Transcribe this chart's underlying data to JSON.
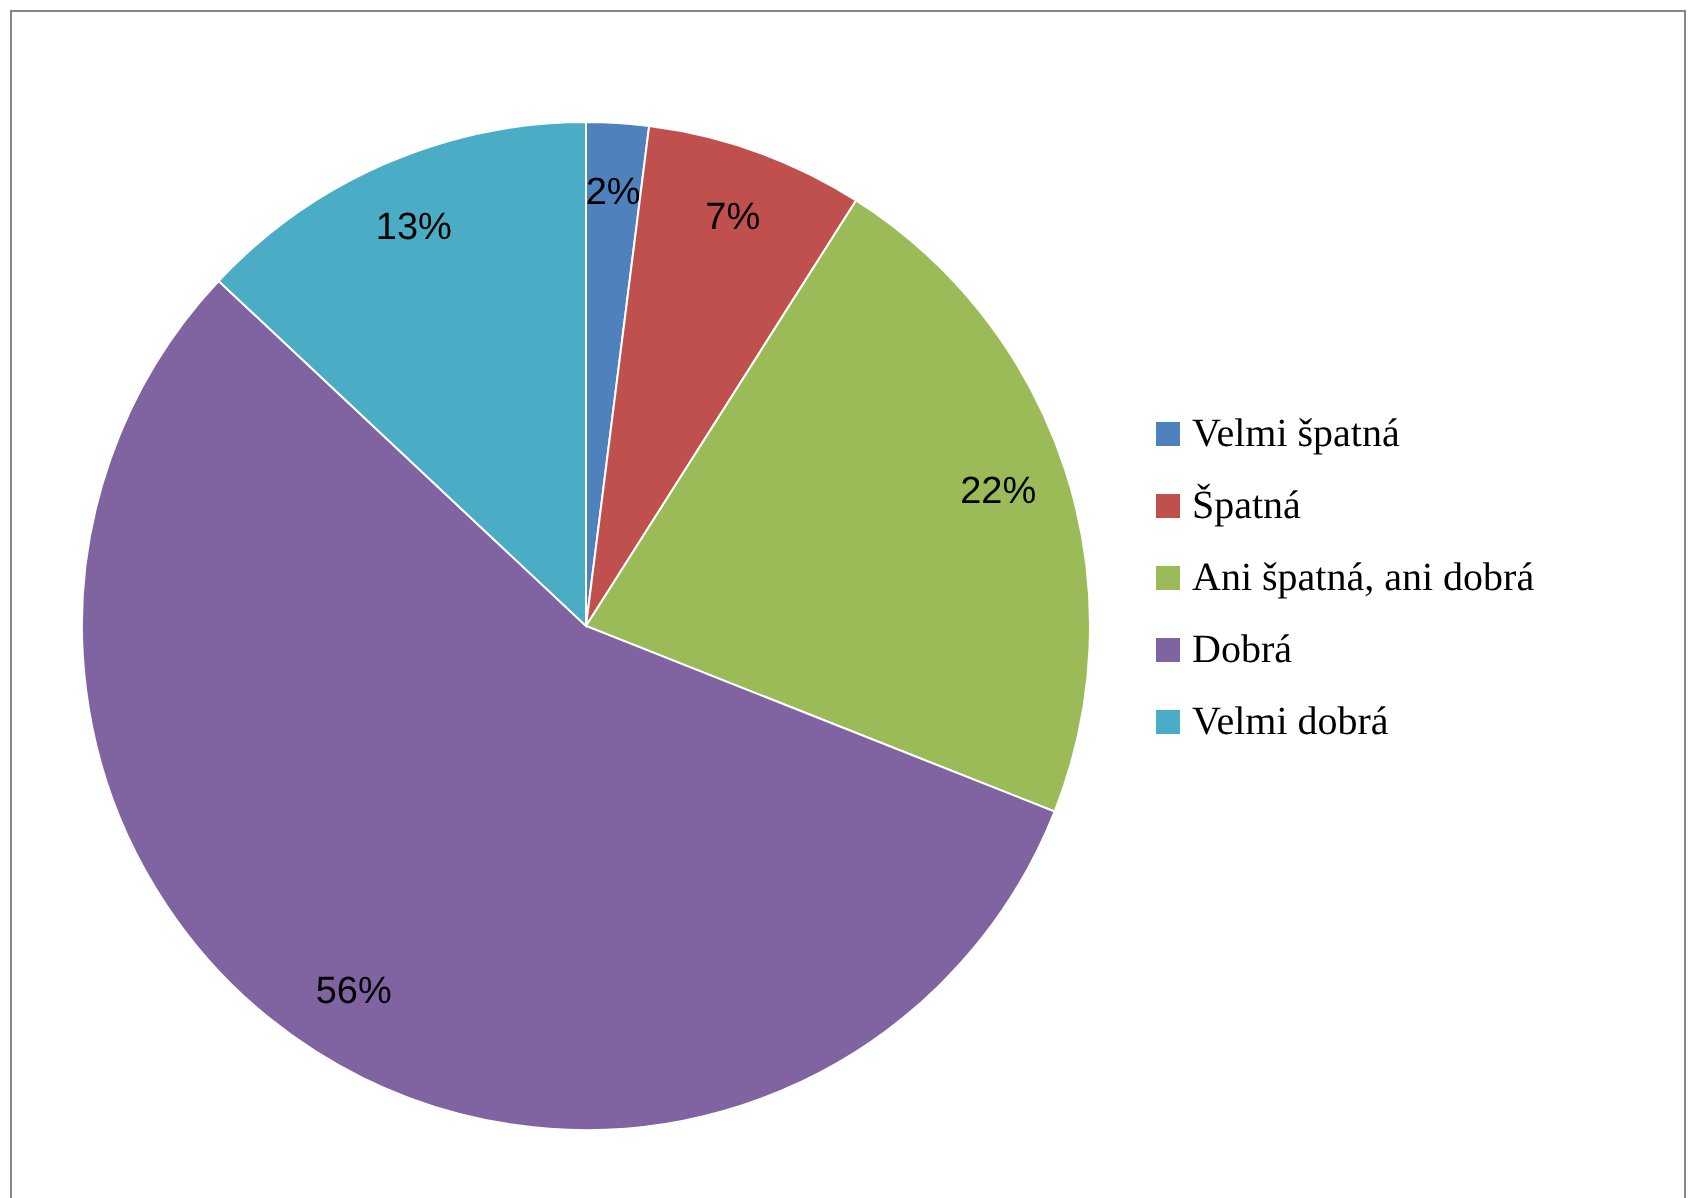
{
  "chart_data": {
    "type": "pie",
    "categories": [
      "Velmi špatná",
      "Špatná",
      "Ani špatná, ani dobrá",
      "Dobrá",
      "Velmi dobrá"
    ],
    "values": [
      2,
      7,
      22,
      56,
      13
    ],
    "colors": [
      "#4f81bd",
      "#c0504d",
      "#9bbb59",
      "#8064a2",
      "#4bacc6"
    ],
    "value_labels": [
      "2%",
      "7%",
      "22%",
      "56%",
      "13%"
    ],
    "legend": "right"
  }
}
